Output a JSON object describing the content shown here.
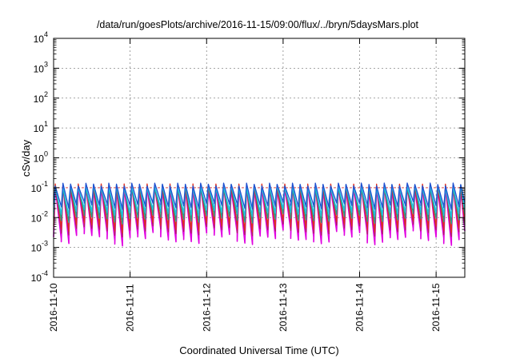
{
  "chart_data": {
    "type": "line",
    "title": "/data/run/goesPlots/archive/2016-11-15/09:00/flux/../bryn/5daysMars.plot",
    "xlabel": "Coordinated Universal Time (UTC)",
    "ylabel": "cSv/day",
    "yscale": "log",
    "ylim": [
      0.0001,
      10000
    ],
    "xlim": [
      "2016-11-10T00:00",
      "2016-11-15T09:00"
    ],
    "x_ticks": [
      "2016-11-10",
      "2016-11-11",
      "2016-11-12",
      "2016-11-13",
      "2016-11-14",
      "2016-11-15"
    ],
    "y_ticks": [
      {
        "value": 0.0001,
        "base": "10",
        "exp": "-4"
      },
      {
        "value": 0.001,
        "base": "10",
        "exp": "-3"
      },
      {
        "value": 0.01,
        "base": "10",
        "exp": "-2"
      },
      {
        "value": 0.1,
        "base": "10",
        "exp": "-1"
      },
      {
        "value": 1,
        "base": "10",
        "exp": "0"
      },
      {
        "value": 10,
        "base": "10",
        "exp": "1"
      },
      {
        "value": 100,
        "base": "10",
        "exp": "2"
      },
      {
        "value": 1000,
        "base": "10",
        "exp": "3"
      },
      {
        "value": 10000,
        "base": "10",
        "exp": "4"
      }
    ],
    "grid": true,
    "legend": "none",
    "oscillation_period_hours": 2.4,
    "reference_line": {
      "value": 0.1,
      "color": "#e05050"
    },
    "series": [
      {
        "color": "#e000e0",
        "peak": 0.11,
        "min_min": 0.0011,
        "min_max": 0.0045
      },
      {
        "color": "#b02060",
        "peak": 0.12,
        "min_min": 0.0022,
        "min_max": 0.007
      },
      {
        "color": "#e03020",
        "peak": 0.13,
        "min_min": 0.003,
        "min_max": 0.009
      },
      {
        "color": "#1fa090",
        "peak": 0.12,
        "min_min": 0.006,
        "min_max": 0.015
      },
      {
        "color": "#20c0e0",
        "peak": 0.12,
        "min_min": 0.01,
        "min_max": 0.022
      },
      {
        "color": "#2050d0",
        "peak": 0.14,
        "min_min": 0.018,
        "min_max": 0.035
      }
    ]
  }
}
